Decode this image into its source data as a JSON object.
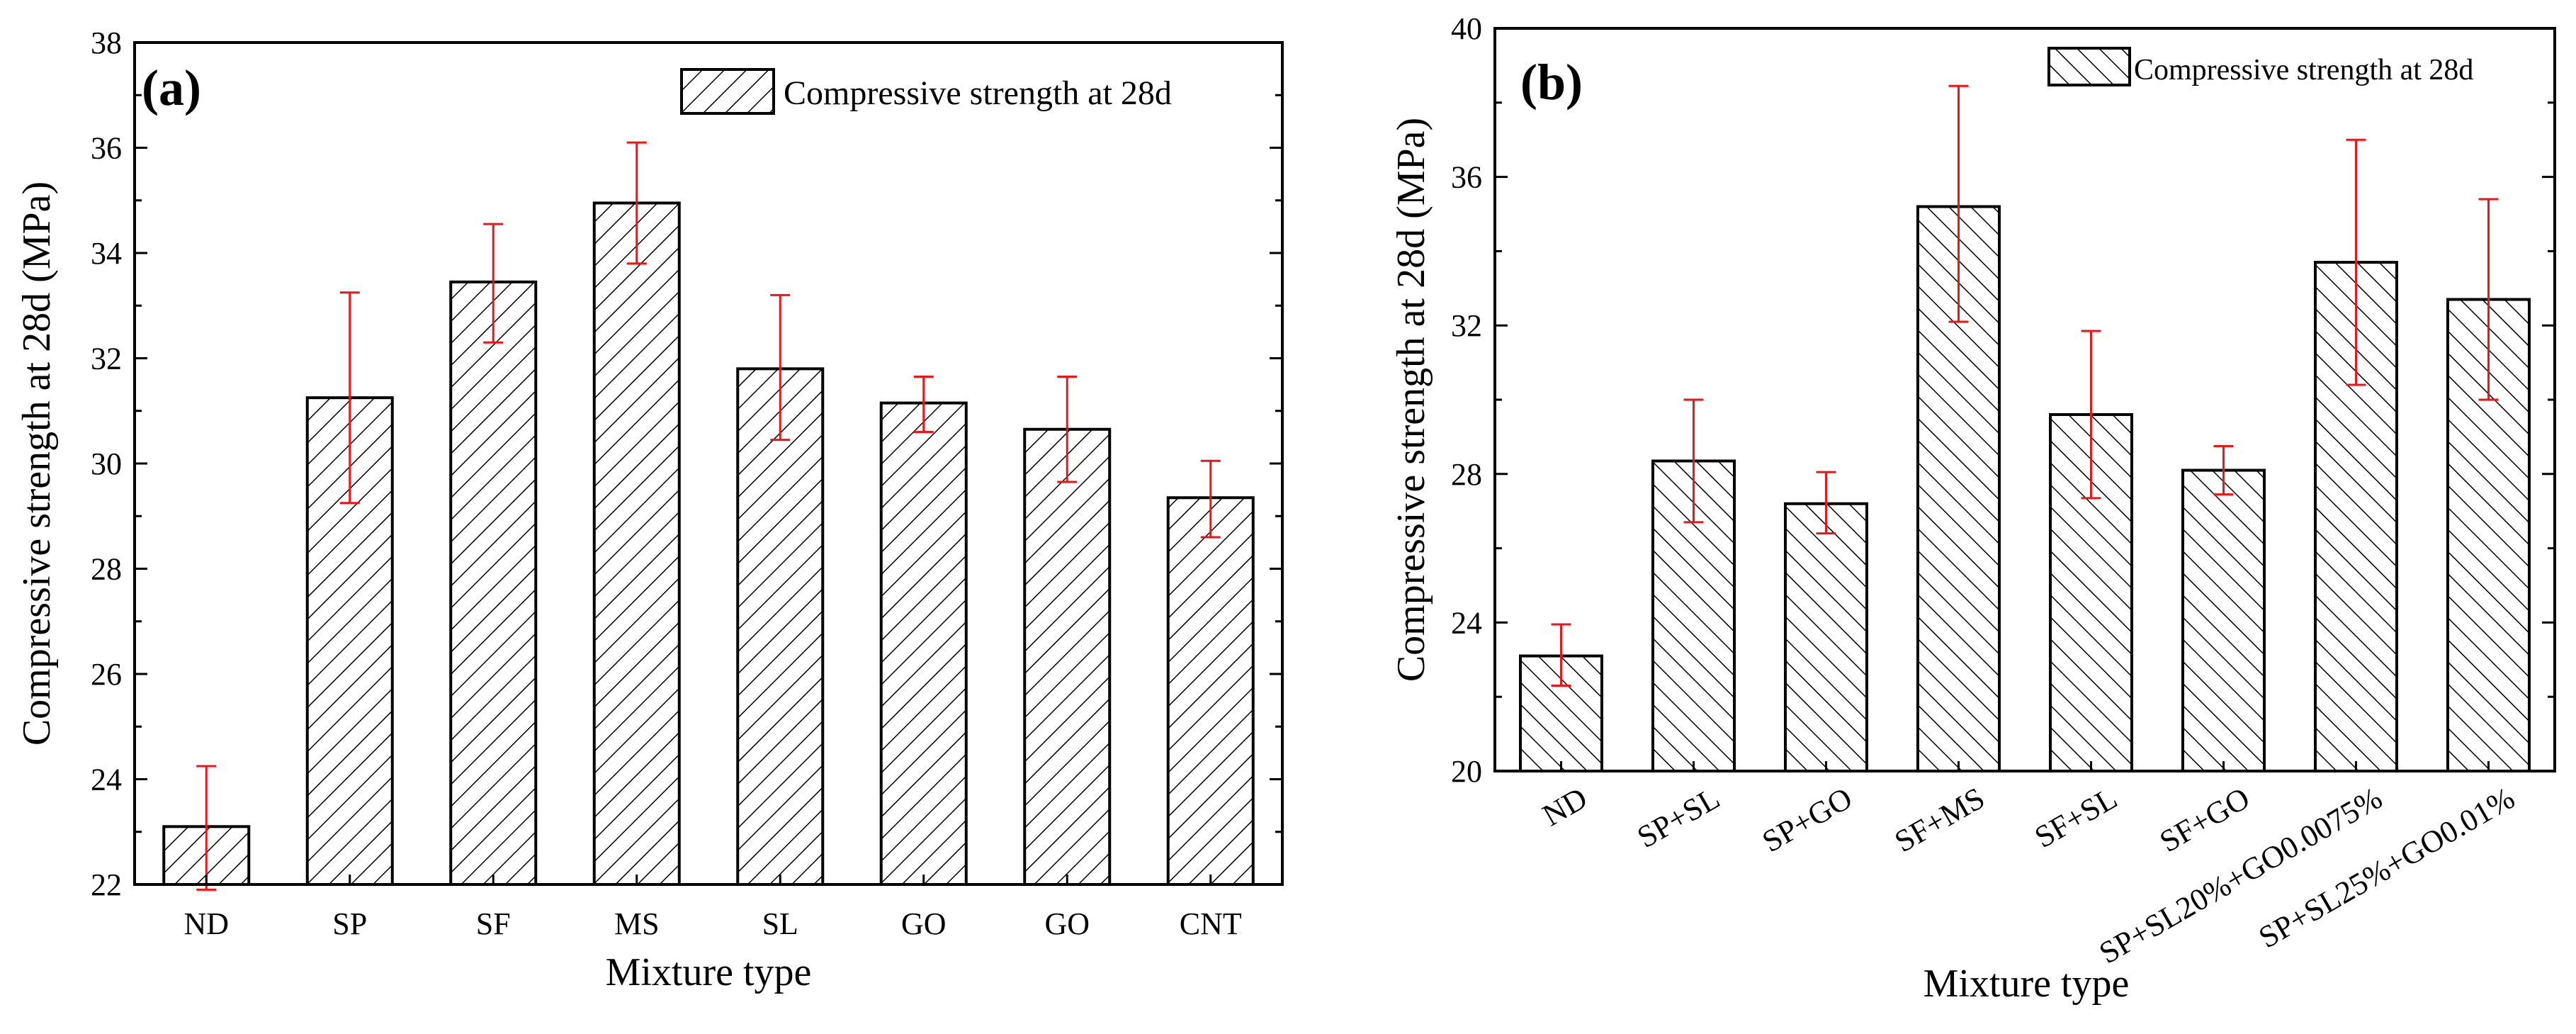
{
  "chart_data": [
    {
      "type": "bar",
      "panel": "(a)",
      "title": "",
      "xlabel": "Mixture type",
      "ylabel": "Compressive strength at 28d (MPa)",
      "ylim": [
        22,
        38
      ],
      "yticks": [
        "22",
        "24",
        "26",
        "28",
        "30",
        "32",
        "34",
        "36",
        "38"
      ],
      "categories": [
        "ND",
        "SP",
        "SF",
        "MS",
        "SL",
        "GO",
        "GO",
        "CNT"
      ],
      "series": [
        {
          "name": "Compressive strength at 28d",
          "values": [
            23.1,
            31.25,
            33.45,
            34.95,
            31.8,
            31.15,
            30.65,
            29.35
          ],
          "error_low": [
            21.9,
            29.25,
            32.3,
            33.8,
            30.45,
            30.6,
            29.65,
            28.6
          ],
          "error_high": [
            24.25,
            33.25,
            34.55,
            36.1,
            33.2,
            31.65,
            31.65,
            30.05
          ]
        }
      ],
      "legend": "Compressive strength at 28d",
      "legend_position": "top-right",
      "hatch": "forward-diagonal",
      "error_bar_color": "#e8171b"
    },
    {
      "type": "bar",
      "panel": "(b)",
      "title": "",
      "xlabel": "Mixture type",
      "ylabel": "Compressive strength at 28d (MPa)",
      "ylim": [
        20,
        40
      ],
      "yticks": [
        "20",
        "24",
        "28",
        "32",
        "36",
        "40"
      ],
      "categories": [
        "ND",
        "SP+SL",
        "SP+GO",
        "SF+MS",
        "SF+SL",
        "SF+GO",
        "SP+SL20%+GO0.0075%",
        "SP+SL25%+GO0.01%"
      ],
      "series": [
        {
          "name": "Compressive strength at 28d",
          "values": [
            23.1,
            28.35,
            27.2,
            35.2,
            29.6,
            28.1,
            33.7,
            32.7
          ],
          "error_low": [
            22.3,
            26.7,
            26.4,
            32.1,
            27.35,
            27.45,
            30.4,
            30.0
          ],
          "error_high": [
            23.95,
            30.0,
            28.05,
            38.45,
            31.85,
            28.75,
            37.0,
            35.4
          ]
        }
      ],
      "legend": "Compressive strength at 28d",
      "legend_position": "top-right",
      "hatch": "back-diagonal",
      "error_bar_color": "#e8171b"
    }
  ]
}
